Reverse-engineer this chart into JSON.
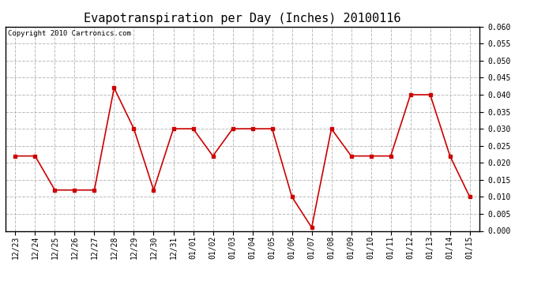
{
  "title": "Evapotranspiration per Day (Inches) 20100116",
  "copyright_text": "Copyright 2010 Cartronics.com",
  "x_labels": [
    "12/23",
    "12/24",
    "12/25",
    "12/26",
    "12/27",
    "12/28",
    "12/29",
    "12/30",
    "12/31",
    "01/01",
    "01/02",
    "01/03",
    "01/04",
    "01/05",
    "01/06",
    "01/07",
    "01/08",
    "01/09",
    "01/10",
    "01/11",
    "01/12",
    "01/13",
    "01/14",
    "01/15"
  ],
  "y_values": [
    0.022,
    0.022,
    0.012,
    0.012,
    0.012,
    0.042,
    0.03,
    0.012,
    0.03,
    0.03,
    0.022,
    0.03,
    0.03,
    0.03,
    0.01,
    0.001,
    0.03,
    0.022,
    0.022,
    0.022,
    0.04,
    0.04,
    0.022,
    0.01
  ],
  "line_color": "#cc0000",
  "marker": "s",
  "marker_size": 3,
  "ylim": [
    0.0,
    0.06
  ],
  "yticks": [
    0.0,
    0.005,
    0.01,
    0.015,
    0.02,
    0.025,
    0.03,
    0.035,
    0.04,
    0.045,
    0.05,
    0.055,
    0.06
  ],
  "grid_color": "#bbbbbb",
  "grid_style": "--",
  "background_color": "#ffffff",
  "title_fontsize": 11,
  "copyright_fontsize": 6.5,
  "tick_fontsize": 7,
  "ytick_fontsize": 7
}
